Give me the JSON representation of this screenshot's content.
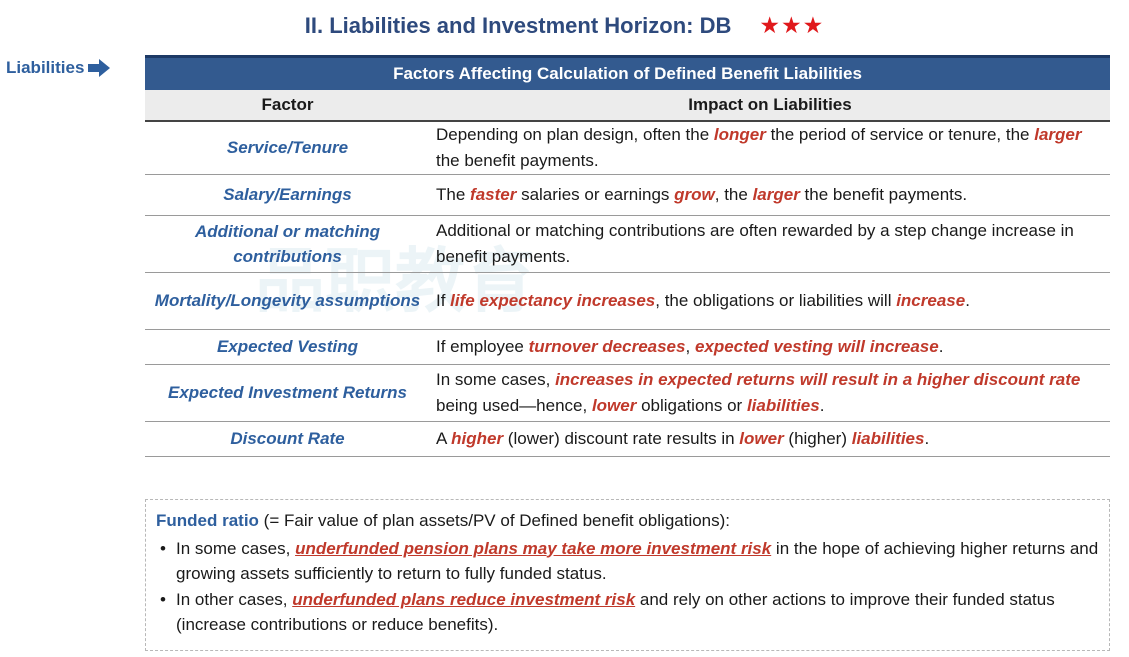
{
  "title": "II. Liabilities and Investment Horizon: DB",
  "stars": "★★★",
  "side_label": "Liabilities",
  "table": {
    "header": "Factors Affecting Calculation of Defined Benefit Liabilities",
    "col_factor": "Factor",
    "col_impact": "Impact on Liabilities",
    "rows": [
      {
        "factor": "Service/Tenure",
        "impact": [
          [
            "Depending on plan design, often the ",
            ""
          ],
          [
            "longer",
            "hl"
          ],
          [
            " the period of service or tenure, the ",
            ""
          ],
          [
            "larger",
            "hl"
          ],
          [
            " the benefit payments.",
            ""
          ]
        ]
      },
      {
        "factor": "Salary/Earnings",
        "impact": [
          [
            "The ",
            ""
          ],
          [
            "faster",
            "hl"
          ],
          [
            " salaries or earnings ",
            ""
          ],
          [
            "grow",
            "hl"
          ],
          [
            ", the ",
            ""
          ],
          [
            "larger",
            "hl"
          ],
          [
            " the benefit payments.",
            ""
          ]
        ]
      },
      {
        "factor": "Additional or matching contributions",
        "impact": [
          [
            "Additional or matching contributions are often rewarded by a step change increase in benefit payments.",
            ""
          ]
        ]
      },
      {
        "factor": "Mortality/Longevity assumptions",
        "impact": [
          [
            "If ",
            ""
          ],
          [
            "life expectancy increases",
            "hl"
          ],
          [
            ", the obligations or liabilities will ",
            ""
          ],
          [
            "increase",
            "hl"
          ],
          [
            ".",
            ""
          ]
        ]
      },
      {
        "factor": "Expected Vesting",
        "impact": [
          [
            "If employee ",
            ""
          ],
          [
            "turnover decreases",
            "hl"
          ],
          [
            ", ",
            ""
          ],
          [
            "expected vesting will increase",
            "hl"
          ],
          [
            ".",
            ""
          ]
        ]
      },
      {
        "factor": "Expected Investment Returns",
        "impact": [
          [
            "In some cases, ",
            ""
          ],
          [
            "increases in expected returns will result in a higher discount rate",
            "hl"
          ],
          [
            " being used—hence, ",
            ""
          ],
          [
            "lower",
            "hl"
          ],
          [
            " obligations or ",
            ""
          ],
          [
            "liabilities",
            "hl"
          ],
          [
            ".",
            ""
          ]
        ]
      },
      {
        "factor": "Discount Rate",
        "impact": [
          [
            "A ",
            ""
          ],
          [
            "higher",
            "hl"
          ],
          [
            " (lower) discount rate results in ",
            ""
          ],
          [
            "lower",
            "hl"
          ],
          [
            " (higher) ",
            ""
          ],
          [
            "liabilities",
            "hl"
          ],
          [
            ".",
            ""
          ]
        ]
      }
    ]
  },
  "note": {
    "lead": "Funded ratio",
    "lead_rest": " (= Fair value of plan assets/PV of Defined benefit obligations):",
    "bullets": [
      [
        [
          "In some cases, ",
          ""
        ],
        [
          "underfunded pension plans may take more investment risk",
          "hlu"
        ],
        [
          " in the hope of achieving higher returns and growing assets sufficiently to return to fully funded status.",
          ""
        ]
      ],
      [
        [
          "In other cases, ",
          ""
        ],
        [
          "underfunded plans reduce investment risk",
          "hlu"
        ],
        [
          " and rely on other actions to improve their funded status (increase contributions or reduce benefits).",
          ""
        ]
      ]
    ]
  },
  "watermark": "品职教育",
  "colors": {
    "accent": "#2e5f9e",
    "header_bg": "#335a8f",
    "highlight": "#c0392b",
    "star": "#e0181b"
  }
}
